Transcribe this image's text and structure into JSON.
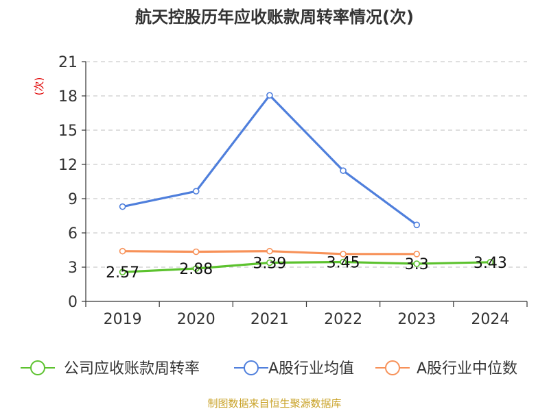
{
  "title": "航天控股历年应收账款周转率情况(次)",
  "source_note": "制图数据来自恒生聚源数据库",
  "chart_data": {
    "type": "line",
    "title": "航天控股历年应收账款周转率情况(次)",
    "ylabel": "(次)",
    "categories": [
      "2019",
      "2020",
      "2021",
      "2022",
      "2023",
      "2024"
    ],
    "ylim": [
      0,
      21
    ],
    "yticks": [
      0,
      3,
      6,
      9,
      12,
      15,
      18,
      21
    ],
    "grid": true,
    "legend_position": "bottom",
    "series": [
      {
        "name": "公司应收账款周转率",
        "color": "#5cc22e",
        "values": [
          2.57,
          2.88,
          3.39,
          3.45,
          3.3,
          3.43
        ],
        "labels": [
          "2.57",
          "2.88",
          "3.39",
          "3.45",
          "3.3",
          "3.43"
        ]
      },
      {
        "name": "A股行业均值",
        "color": "#4f7fdc",
        "values": [
          8.3,
          9.65,
          18.05,
          11.45,
          6.7,
          null
        ]
      },
      {
        "name": "A股行业中位数",
        "color": "#f79158",
        "values": [
          4.4,
          4.35,
          4.4,
          4.15,
          4.15,
          null
        ]
      }
    ]
  }
}
